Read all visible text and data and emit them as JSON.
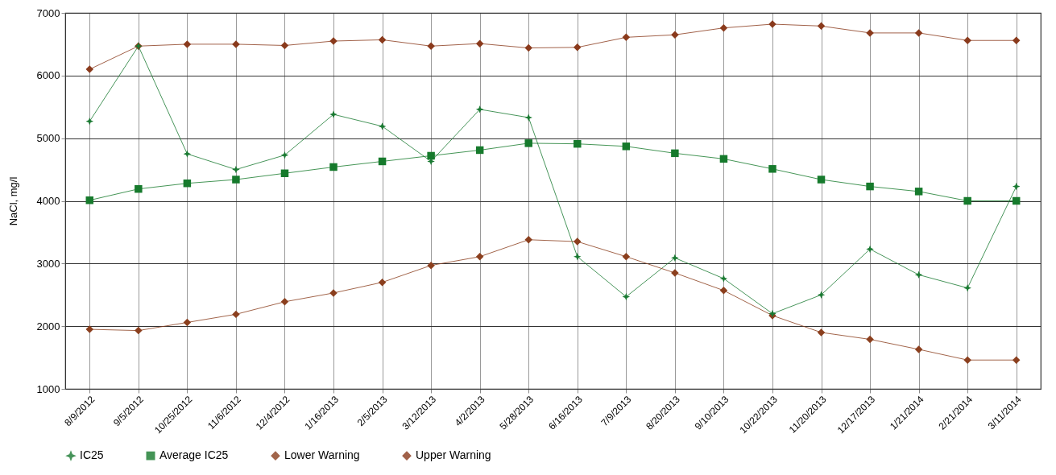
{
  "chart_data": {
    "type": "line",
    "ylabel": "NaCl, mg/l",
    "categories": [
      "8/9/2012",
      "9/5/2012",
      "10/25/2012",
      "11/6/2012",
      "12/4/2012",
      "1/16/2013",
      "2/5/2013",
      "3/12/2013",
      "4/2/2013",
      "5/28/2013",
      "6/16/2013",
      "7/9/2013",
      "8/20/2013",
      "9/10/2013",
      "10/22/2013",
      "11/20/2013",
      "12/17/2013",
      "1/21/2014",
      "2/21/2014",
      "3/11/2014"
    ],
    "series": [
      {
        "name": "IC25",
        "color": "#1a7a32",
        "marker": "star",
        "values": [
          5270,
          6470,
          4750,
          4500,
          4730,
          5380,
          5190,
          4630,
          5460,
          5330,
          3110,
          2470,
          3090,
          2760,
          2200,
          2500,
          3230,
          2820,
          2610,
          4230
        ]
      },
      {
        "name": "Average IC25",
        "color": "#167a2c",
        "marker": "square",
        "values": [
          4010,
          4190,
          4280,
          4340,
          4440,
          4540,
          4630,
          4720,
          4810,
          4920,
          4910,
          4870,
          4760,
          4670,
          4510,
          4340,
          4230,
          4150,
          4000,
          4000
        ]
      },
      {
        "name": "Lower Warning",
        "color": "#8b3f1e",
        "marker": "diamond",
        "values": [
          1950,
          1930,
          2060,
          2190,
          2390,
          2530,
          2700,
          2970,
          3110,
          3380,
          3350,
          3110,
          2850,
          2570,
          2170,
          1900,
          1790,
          1630,
          1460,
          1460
        ]
      },
      {
        "name": "Upper Warning",
        "color": "#8a3a1c",
        "marker": "diamond",
        "values": [
          6100,
          6470,
          6500,
          6500,
          6480,
          6550,
          6570,
          6470,
          6510,
          6440,
          6450,
          6610,
          6650,
          6760,
          6820,
          6790,
          6680,
          6680,
          6560,
          6560
        ]
      }
    ],
    "ylim": [
      1000,
      7000
    ],
    "yticks": [
      1000,
      2000,
      3000,
      4000,
      5000,
      6000,
      7000
    ],
    "grid": true,
    "legend": "bottom",
    "line_style": "solid"
  }
}
